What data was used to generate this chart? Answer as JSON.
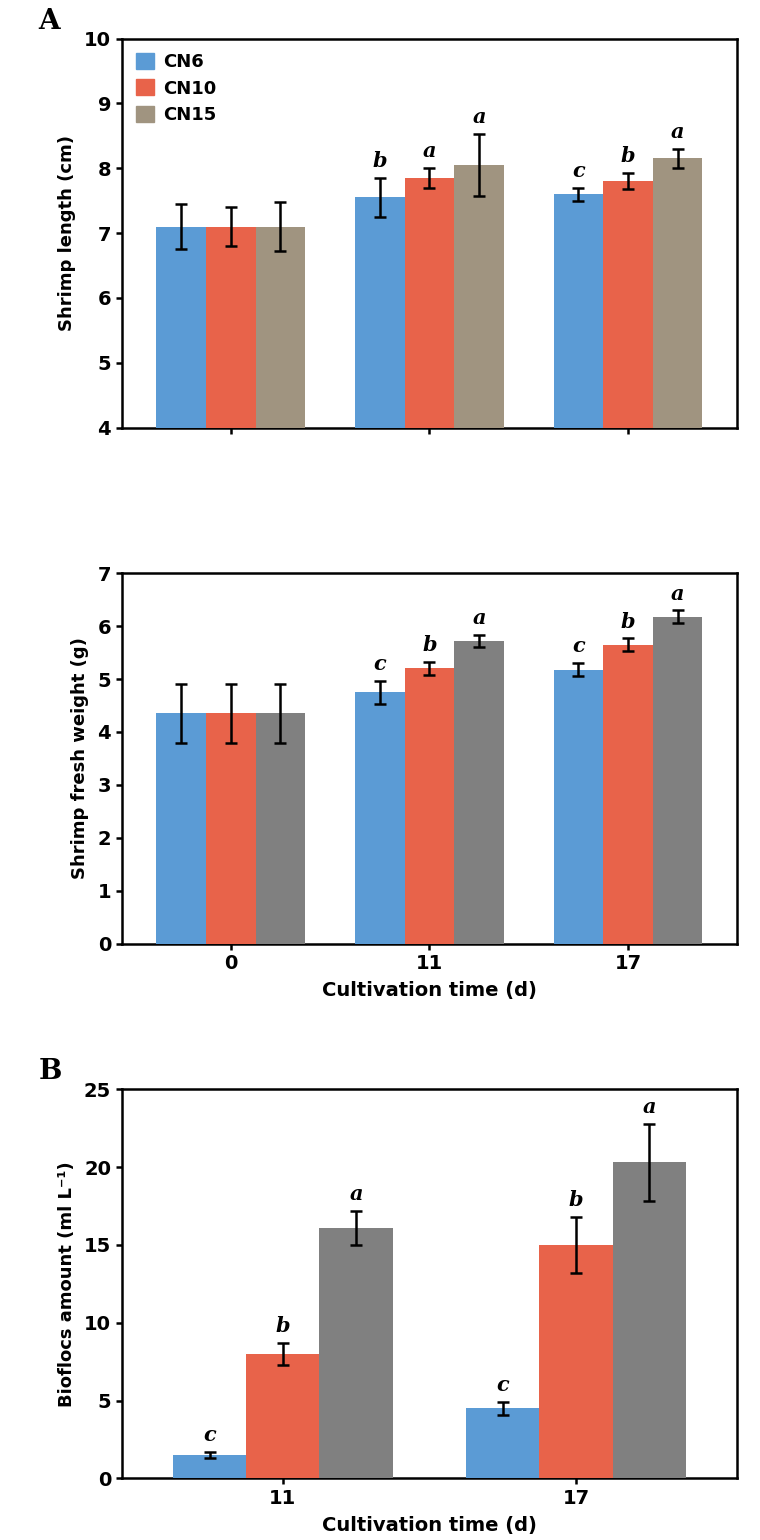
{
  "panel_A_top": {
    "ylabel": "Shrimp length (cm)",
    "ylim": [
      4,
      10
    ],
    "yticks": [
      4,
      5,
      6,
      7,
      8,
      9,
      10
    ],
    "groups": [
      "0",
      "11",
      "17"
    ],
    "CN6_values": [
      7.1,
      7.55,
      7.6
    ],
    "CN10_values": [
      7.1,
      7.85,
      7.8
    ],
    "CN15_values": [
      7.1,
      8.05,
      8.15
    ],
    "CN6_err": [
      0.35,
      0.3,
      0.1
    ],
    "CN10_err": [
      0.3,
      0.15,
      0.12
    ],
    "CN15_err": [
      0.38,
      0.48,
      0.15
    ],
    "CN6_letters": [
      "",
      "b",
      "c"
    ],
    "CN10_letters": [
      "",
      "a",
      "b"
    ],
    "CN15_letters": [
      "",
      "a",
      "a"
    ],
    "colors": [
      "#5B9BD5",
      "#E8634A",
      "#A09480"
    ]
  },
  "panel_A_bottom": {
    "ylabel": "Shrimp fresh weight (g)",
    "ylim": [
      0,
      7
    ],
    "yticks": [
      0,
      1,
      2,
      3,
      4,
      5,
      6,
      7
    ],
    "groups": [
      "0",
      "11",
      "17"
    ],
    "CN6_values": [
      4.35,
      4.75,
      5.18
    ],
    "CN10_values": [
      4.35,
      5.2,
      5.65
    ],
    "CN15_values": [
      4.35,
      5.72,
      6.18
    ],
    "CN6_err": [
      0.55,
      0.22,
      0.12
    ],
    "CN10_err": [
      0.55,
      0.12,
      0.12
    ],
    "CN15_err": [
      0.55,
      0.12,
      0.12
    ],
    "CN6_letters": [
      "",
      "c",
      "c"
    ],
    "CN10_letters": [
      "",
      "b",
      "b"
    ],
    "CN15_letters": [
      "",
      "a",
      "a"
    ],
    "colors": [
      "#5B9BD5",
      "#E8634A",
      "#808080"
    ]
  },
  "panel_B": {
    "ylabel": "Bioflocs amount (ml L⁻¹)",
    "xlabel": "Cultivation time (d)",
    "ylim": [
      0,
      25
    ],
    "yticks": [
      0,
      5,
      10,
      15,
      20,
      25
    ],
    "groups": [
      "11",
      "17"
    ],
    "CN6_values": [
      1.5,
      4.5
    ],
    "CN10_values": [
      8.0,
      15.0
    ],
    "CN15_values": [
      16.1,
      20.3
    ],
    "CN6_err": [
      0.2,
      0.4
    ],
    "CN10_err": [
      0.7,
      1.8
    ],
    "CN15_err": [
      1.1,
      2.5
    ],
    "CN6_letters": [
      "c",
      "c"
    ],
    "CN10_letters": [
      "b",
      "b"
    ],
    "CN15_letters": [
      "a",
      "a"
    ],
    "colors": [
      "#5B9BD5",
      "#E8634A",
      "#808080"
    ]
  },
  "legend_labels": [
    "CN6",
    "CN10",
    "CN15"
  ],
  "legend_colors": [
    "#5B9BD5",
    "#E8634A",
    "#A09480"
  ],
  "panel_A_top_CN15_color": "#A09480",
  "panel_A_bottom_CN15_color": "#808080"
}
